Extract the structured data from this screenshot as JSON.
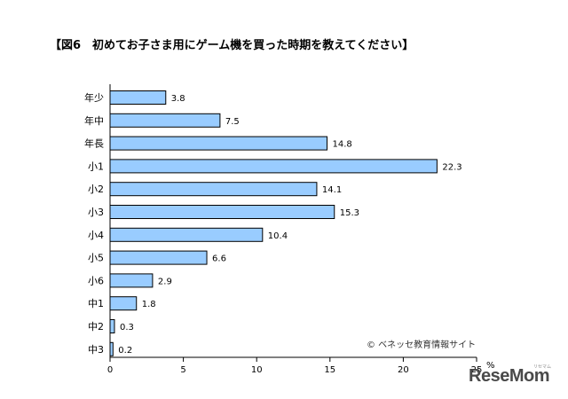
{
  "chart_data": {
    "type": "bar",
    "orientation": "horizontal",
    "title": "【図6　初めてお子さま用にゲーム機を買った時期を教えてください】",
    "categories": [
      "年少",
      "年中",
      "年長",
      "小1",
      "小2",
      "小3",
      "小4",
      "小5",
      "小6",
      "中1",
      "中2",
      "中3"
    ],
    "values": [
      3.8,
      7.5,
      14.8,
      22.3,
      14.1,
      15.3,
      10.4,
      6.6,
      2.9,
      1.8,
      0.3,
      0.2
    ],
    "value_labels": [
      "3.8",
      "7.5",
      "14.8",
      "22.3",
      "14.1",
      "15.3",
      "10.4",
      "6.6",
      "2.9",
      "1.8",
      "0.3",
      "0.2"
    ],
    "xlim": [
      0,
      25
    ],
    "xticks": [
      0,
      5,
      10,
      15,
      20,
      25
    ],
    "xtick_labels": [
      "0",
      "5",
      "10",
      "15",
      "20",
      "25"
    ],
    "xlabel": "%",
    "ylabel": "",
    "grid": false,
    "bar_color": "#99ccff",
    "bar_edge_color": "#000000"
  },
  "copyright": "© ベネッセ教育情報サイト",
  "logo": {
    "text": "ReseMom",
    "subtext": "リセマム"
  }
}
